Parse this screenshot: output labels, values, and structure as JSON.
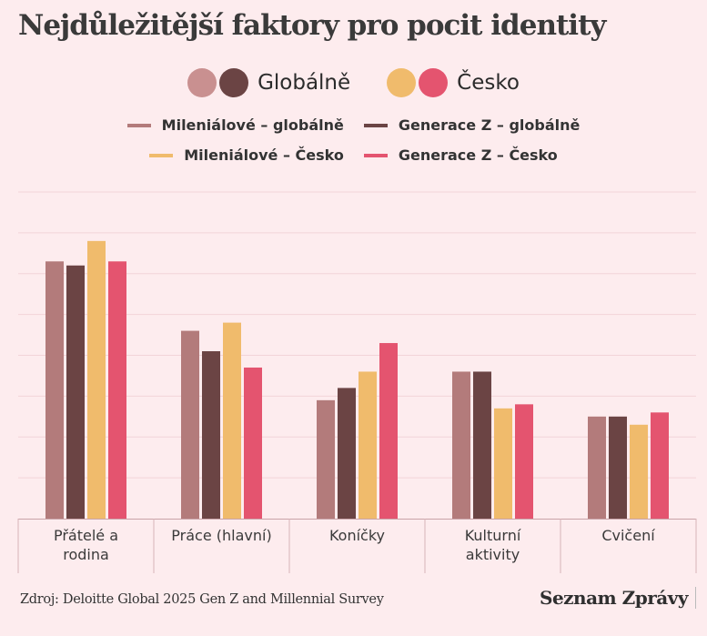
{
  "title": "Nejdůležitější faktory pro pocit identity",
  "group_legend": [
    {
      "label": "Globálně",
      "colors": [
        "#c99090",
        "#6b4444"
      ]
    },
    {
      "label": "Česko",
      "colors": [
        "#f0bb6c",
        "#e4546f"
      ]
    }
  ],
  "series_legend": {
    "row1": [
      {
        "label": "Mileniálové – globálně",
        "color": "#b37b7b"
      },
      {
        "label": "Generace Z – globálně",
        "color": "#6b4444"
      }
    ],
    "row2": [
      {
        "label": "Mileniálové – Česko",
        "color": "#f0bb6c"
      },
      {
        "label": "Generace Z – Česko",
        "color": "#e4546f"
      }
    ]
  },
  "chart_data": {
    "type": "bar",
    "categories": [
      [
        "Přátelé a",
        "rodina"
      ],
      [
        "Práce (hlavní)"
      ],
      [
        "Koníčky"
      ],
      [
        "Kulturní",
        "aktivity"
      ],
      [
        "Cvičení"
      ]
    ],
    "series": [
      {
        "name": "Mileniálové – globálně",
        "color": "#b37b7b",
        "values": [
          63,
          46,
          29,
          36,
          25
        ]
      },
      {
        "name": "Generace Z – globálně",
        "color": "#6b4444",
        "values": [
          62,
          41,
          32,
          36,
          25
        ]
      },
      {
        "name": "Mileniálové – Česko",
        "color": "#f0bb6c",
        "values": [
          68,
          48,
          36,
          27,
          23
        ]
      },
      {
        "name": "Generace Z – Česko",
        "color": "#e4546f",
        "values": [
          63,
          37,
          43,
          28,
          26
        ]
      }
    ],
    "ylim": [
      0,
      80
    ],
    "grid": true,
    "legend": "top-center"
  },
  "source": "Zdroj: Deloitte Global 2025 Gen Z and Millennial Survey",
  "brand": "Seznam Zprávy"
}
